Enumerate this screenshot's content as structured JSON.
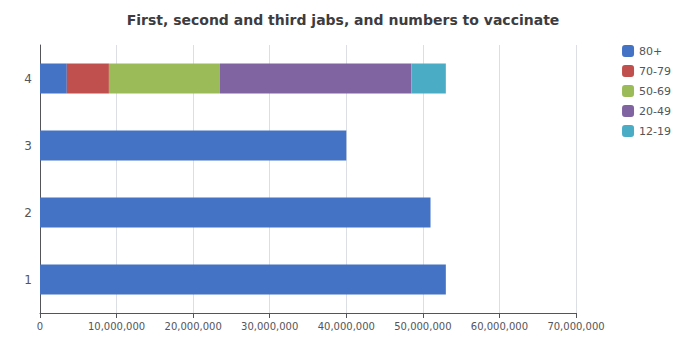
{
  "chart_data": {
    "type": "bar",
    "title": "First, second and third jabs, and numbers to vaccinate",
    "orientation": "horizontal",
    "stacked": true,
    "categories": [
      "1",
      "2",
      "3",
      "4"
    ],
    "series": [
      {
        "name": "80+",
        "color": "#4472C4",
        "values": [
          53000000,
          51000000,
          40000000,
          3500000
        ]
      },
      {
        "name": "70-79",
        "color": "#C0504D",
        "values": [
          0,
          0,
          0,
          5500000
        ]
      },
      {
        "name": "50-69",
        "color": "#9BBB59",
        "values": [
          0,
          0,
          0,
          14500000
        ]
      },
      {
        "name": "20-49",
        "color": "#8064A2",
        "values": [
          0,
          0,
          0,
          25000000
        ]
      },
      {
        "name": "12-19",
        "color": "#4BACC6",
        "values": [
          0,
          0,
          0,
          4500000
        ]
      }
    ],
    "xlim": [
      0,
      70000000
    ],
    "xticks": [
      0,
      {
        "value": 10000000,
        "label": "10,000,000"
      },
      {
        "value": 20000000,
        "label": "20,000,000"
      },
      {
        "value": 30000000,
        "label": "30,000,000"
      },
      {
        "value": 40000000,
        "label": "40,000,000"
      },
      {
        "value": 50000000,
        "label": "50,000,000"
      },
      {
        "value": 60000000,
        "label": "60,000,000"
      },
      {
        "value": 70000000,
        "label": "70,000,000"
      }
    ],
    "grid": true,
    "legend": "right"
  }
}
